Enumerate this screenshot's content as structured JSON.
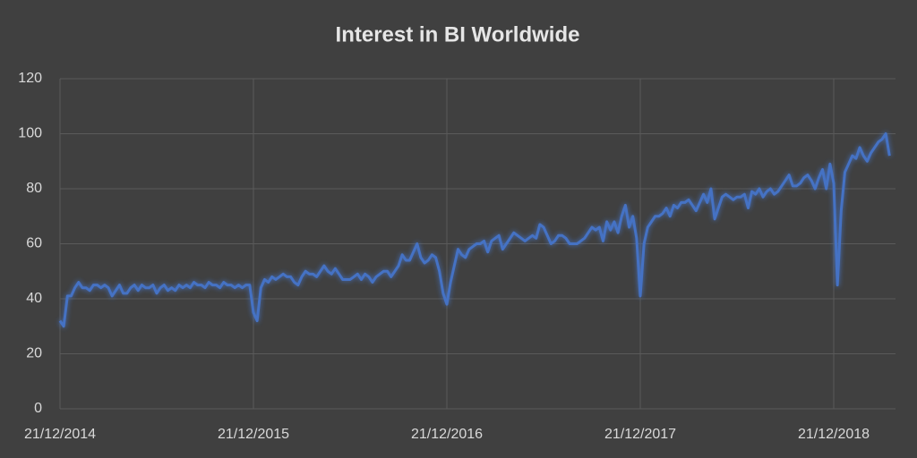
{
  "chart_data": {
    "type": "line",
    "title": "Interest in BI Worldwide",
    "categories": [
      "21/12/2014",
      null,
      null,
      null,
      null,
      null,
      null,
      null,
      null,
      null,
      null,
      null,
      null,
      null,
      null,
      null,
      null,
      null,
      null,
      null,
      null,
      null,
      null,
      null,
      null,
      null,
      null,
      null,
      null,
      null,
      null,
      null,
      null,
      null,
      null,
      null,
      null,
      null,
      null,
      null,
      null,
      null,
      null,
      null,
      null,
      null,
      null,
      null,
      null,
      null,
      null,
      null,
      "21/12/2015",
      null,
      null,
      null,
      null,
      null,
      null,
      null,
      null,
      null,
      null,
      null,
      null,
      null,
      null,
      null,
      null,
      null,
      null,
      null,
      null,
      null,
      null,
      null,
      null,
      null,
      null,
      null,
      null,
      null,
      null,
      null,
      null,
      null,
      null,
      null,
      null,
      null,
      null,
      null,
      null,
      null,
      null,
      null,
      null,
      null,
      null,
      null,
      null,
      null,
      null,
      null,
      "21/12/2016",
      null,
      null,
      null,
      null,
      null,
      null,
      null,
      null,
      null,
      null,
      null,
      null,
      null,
      null,
      null,
      null,
      null,
      null,
      null,
      null,
      null,
      null,
      null,
      null,
      null,
      null,
      null,
      null,
      null,
      null,
      null,
      null,
      null,
      null,
      null,
      null,
      null,
      null,
      null,
      null,
      null,
      null,
      null,
      null,
      null,
      null,
      null,
      null,
      null,
      null,
      null,
      "21/12/2017",
      null,
      null,
      null,
      null,
      null,
      null,
      null,
      null,
      null,
      null,
      null,
      null,
      null,
      null,
      null,
      null,
      null,
      null,
      null,
      null,
      null,
      null,
      null,
      null,
      null,
      null,
      null,
      null,
      null,
      null,
      null,
      null,
      null,
      null,
      null,
      null,
      null,
      null,
      null,
      null,
      null,
      null,
      null,
      null,
      null,
      null,
      null,
      null,
      null,
      null,
      null,
      "21/12/2018",
      null,
      null,
      null,
      null,
      null,
      null,
      null,
      null,
      null,
      null,
      null,
      null,
      null,
      null,
      null
    ],
    "series": [
      {
        "color": "#4472c4",
        "values": [
          32,
          30,
          41,
          41,
          44,
          46,
          44,
          44,
          43,
          45,
          45,
          44,
          45,
          44,
          41,
          43,
          45,
          42,
          42,
          44,
          45,
          43,
          45,
          44,
          44,
          45,
          42,
          44,
          45,
          43,
          44,
          43,
          45,
          44,
          45,
          44,
          46,
          45,
          45,
          44,
          46,
          45,
          45,
          44,
          46,
          45,
          45,
          44,
          45,
          44,
          45,
          45,
          35,
          32,
          44,
          47,
          46,
          48,
          47,
          48,
          49,
          48,
          48,
          46,
          45,
          48,
          50,
          49,
          49,
          48,
          50,
          52,
          50,
          49,
          51,
          49,
          47,
          47,
          47,
          48,
          49,
          47,
          49,
          48,
          46,
          48,
          49,
          50,
          50,
          48,
          50,
          52,
          56,
          54,
          54,
          57,
          60,
          55,
          53,
          54,
          56,
          55,
          50,
          42,
          38,
          46,
          52,
          58,
          56,
          55,
          58,
          59,
          60,
          60,
          61,
          57,
          61,
          62,
          63,
          58,
          60,
          62,
          64,
          63,
          62,
          61,
          62,
          63,
          62,
          67,
          66,
          63,
          60,
          61,
          63,
          63,
          62,
          60,
          60,
          60,
          61,
          62,
          64,
          66,
          65,
          66,
          61,
          68,
          65,
          68,
          64,
          70,
          74,
          66,
          70,
          62,
          41,
          60,
          66,
          68,
          70,
          70,
          71,
          73,
          70,
          74,
          73,
          75,
          75,
          76,
          74,
          72,
          75,
          78,
          75,
          80,
          69,
          73,
          77,
          78,
          77,
          76,
          77,
          77,
          78,
          73,
          79,
          78,
          80,
          77,
          79,
          80,
          78,
          79,
          81,
          83,
          85,
          81,
          81,
          82,
          84,
          85,
          83,
          80,
          84,
          87,
          80,
          89,
          82,
          45,
          72,
          86,
          89,
          92,
          91,
          95,
          92,
          90,
          93,
          95,
          97,
          98,
          100,
          92
        ]
      }
    ],
    "ylim": [
      0,
      120
    ],
    "yticks": [
      0,
      20,
      40,
      60,
      80,
      100,
      120
    ],
    "grid": true
  }
}
